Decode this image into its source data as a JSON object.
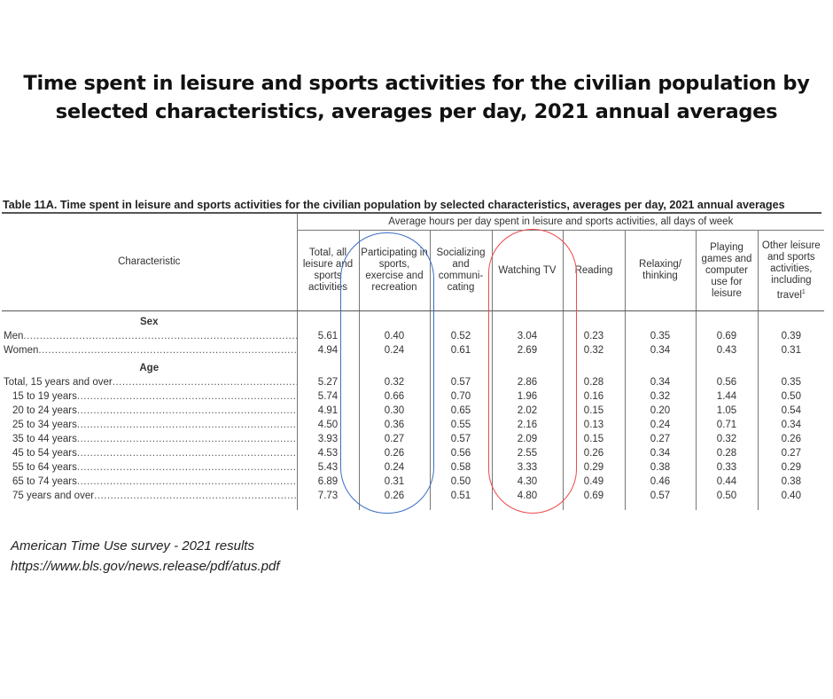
{
  "title_line1": "Time spent in leisure and sports activities for the civilian population by",
  "title_line2": "selected characteristics, averages per day, 2021 annual averages",
  "table": {
    "caption": "Table 11A. Time spent in leisure and sports activities for the civilian population by selected characteristics, averages per day, 2021 annual averages",
    "spanner": "Average hours per day spent in leisure and sports activities, all days of week",
    "characteristic_header": "Characteristic",
    "columns": [
      "Total, all leisure and sports activities",
      "Participating in sports, exercise and recreation",
      "Socializing and communi-cating",
      "Watching TV",
      "Reading",
      "Relaxing/ thinking",
      "Playing games and computer use for leisure",
      "Other leisure and sports activities, including travel"
    ],
    "footnote_mark": "1",
    "groups": [
      {
        "label": "Sex",
        "rows": [
          {
            "label": "Men",
            "values": [
              "5.61",
              "0.40",
              "0.52",
              "3.04",
              "0.23",
              "0.35",
              "0.69",
              "0.39"
            ]
          },
          {
            "label": "Women",
            "values": [
              "4.94",
              "0.24",
              "0.61",
              "2.69",
              "0.32",
              "0.34",
              "0.43",
              "0.31"
            ]
          }
        ]
      },
      {
        "label": "Age",
        "rows": [
          {
            "label": "Total, 15 years and over",
            "values": [
              "5.27",
              "0.32",
              "0.57",
              "2.86",
              "0.28",
              "0.34",
              "0.56",
              "0.35"
            ]
          },
          {
            "label": "15 to 19 years",
            "values": [
              "5.74",
              "0.66",
              "0.70",
              "1.96",
              "0.16",
              "0.32",
              "1.44",
              "0.50"
            ]
          },
          {
            "label": "20 to 24 years",
            "values": [
              "4.91",
              "0.30",
              "0.65",
              "2.02",
              "0.15",
              "0.20",
              "1.05",
              "0.54"
            ]
          },
          {
            "label": "25 to 34 years",
            "values": [
              "4.50",
              "0.36",
              "0.55",
              "2.16",
              "0.13",
              "0.24",
              "0.71",
              "0.34"
            ]
          },
          {
            "label": "35 to 44 years",
            "values": [
              "3.93",
              "0.27",
              "0.57",
              "2.09",
              "0.15",
              "0.27",
              "0.32",
              "0.26"
            ]
          },
          {
            "label": "45 to 54 years",
            "values": [
              "4.53",
              "0.26",
              "0.56",
              "2.55",
              "0.26",
              "0.34",
              "0.28",
              "0.27"
            ]
          },
          {
            "label": "55 to 64 years",
            "values": [
              "5.43",
              "0.24",
              "0.58",
              "3.33",
              "0.29",
              "0.38",
              "0.33",
              "0.29"
            ]
          },
          {
            "label": "65 to 74 years",
            "values": [
              "6.89",
              "0.31",
              "0.50",
              "4.30",
              "0.49",
              "0.46",
              "0.44",
              "0.38"
            ]
          },
          {
            "label": "75 years and over",
            "values": [
              "7.73",
              "0.26",
              "0.51",
              "4.80",
              "0.69",
              "0.57",
              "0.50",
              "0.40"
            ]
          }
        ]
      }
    ]
  },
  "highlights": {
    "participating_color": "#3a6fc4",
    "tv_color": "#ee4a4a"
  },
  "source_line1": "American Time Use survey - 2021 results",
  "source_line2": "https://www.bls.gov/news.release/pdf/atus.pdf"
}
